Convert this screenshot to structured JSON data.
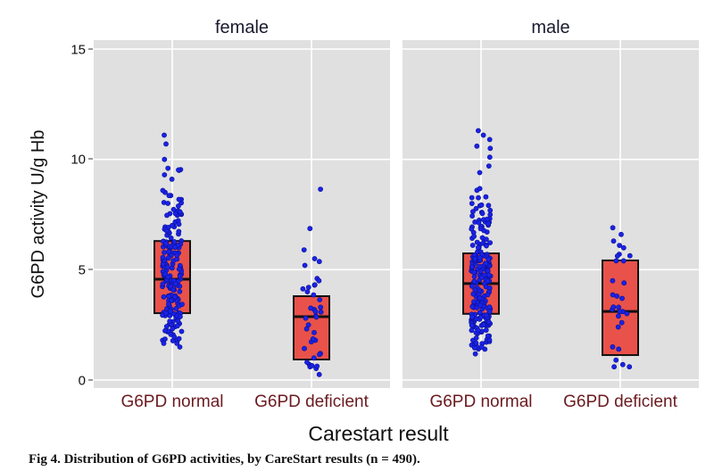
{
  "chart_data": {
    "type": "box",
    "subtype": "faceted boxplot with jittered points",
    "facets": [
      "female",
      "male"
    ],
    "categories": [
      "G6PD normal",
      "G6PD deficient"
    ],
    "xlabel": "Carestart result",
    "ylabel": "G6PD activity U/g Hb",
    "ylim": [
      -0.4,
      15.4
    ],
    "yticks": [
      0,
      5,
      10,
      15
    ],
    "grid": true,
    "legend": "none",
    "colors": {
      "panel_bg": "#e0e0e0",
      "grid": "#ffffff",
      "box_fill": "#e9524a",
      "box_stroke": "#111111",
      "point": "#1a22e8",
      "category_label": "#6b1a1f"
    },
    "boxes": [
      {
        "facet": "female",
        "category": "G6PD normal",
        "q1": 3.03,
        "median": 4.57,
        "q3": 6.3,
        "min": 1.1,
        "max": 11.1,
        "n_points_shown": 190
      },
      {
        "facet": "female",
        "category": "G6PD deficient",
        "q1": 0.93,
        "median": 2.87,
        "q3": 3.8,
        "min": 0.25,
        "max": 8.65,
        "n_points_shown": 40
      },
      {
        "facet": "male",
        "category": "G6PD normal",
        "q1": 3.0,
        "median": 4.37,
        "q3": 5.74,
        "min": 1.1,
        "max": 11.3,
        "n_points_shown": 230
      },
      {
        "facet": "male",
        "category": "G6PD deficient",
        "q1": 1.13,
        "median": 3.11,
        "q3": 5.42,
        "min": 0.55,
        "max": 6.9,
        "n_points_shown": 30
      }
    ],
    "notable_points": [
      {
        "facet": "female",
        "category": "G6PD normal",
        "values": [
          11.1,
          10.7,
          10.0,
          9.6,
          9.5,
          9.3,
          9.1
        ]
      },
      {
        "facet": "female",
        "category": "G6PD deficient",
        "values": [
          8.65,
          5.9,
          5.5,
          4.6,
          4.5,
          4.3,
          4.2,
          4.0,
          3.3,
          3.2,
          3.1,
          2.9,
          2.8,
          2.5,
          1.8,
          1.2,
          1.0,
          0.7,
          0.6,
          0.25
        ]
      },
      {
        "facet": "male",
        "category": "G6PD normal",
        "values": [
          11.3,
          11.1,
          10.9,
          10.6,
          10.5,
          10.1,
          9.7,
          9.4,
          8.6,
          8.3,
          7.9,
          7.6
        ]
      },
      {
        "facet": "male",
        "category": "G6PD deficient",
        "values": [
          6.9,
          6.6,
          6.3,
          6.1,
          5.7,
          5.4,
          5.4,
          4.5,
          4.4,
          3.8,
          3.7,
          3.3,
          3.2,
          3.1,
          2.9,
          2.6,
          2.4,
          1.5,
          1.4,
          0.9,
          0.7,
          0.6,
          0.6
        ]
      }
    ],
    "caption": "Fig 4. Distribution of G6PD activities, by CareStart results (n = 490)."
  },
  "labels": {
    "facet_female": "female",
    "facet_male": "male",
    "ytick_0": "0",
    "ytick_5": "5",
    "ytick_10": "10",
    "ytick_15": "15",
    "cat_normal": "G6PD normal",
    "cat_deficient": "G6PD deficient",
    "xlabel": "Carestart result",
    "ylabel": "G6PD activity U/g Hb",
    "caption": "Fig 4. Distribution of G6PD activities, by CareStart results (n = 490)."
  }
}
